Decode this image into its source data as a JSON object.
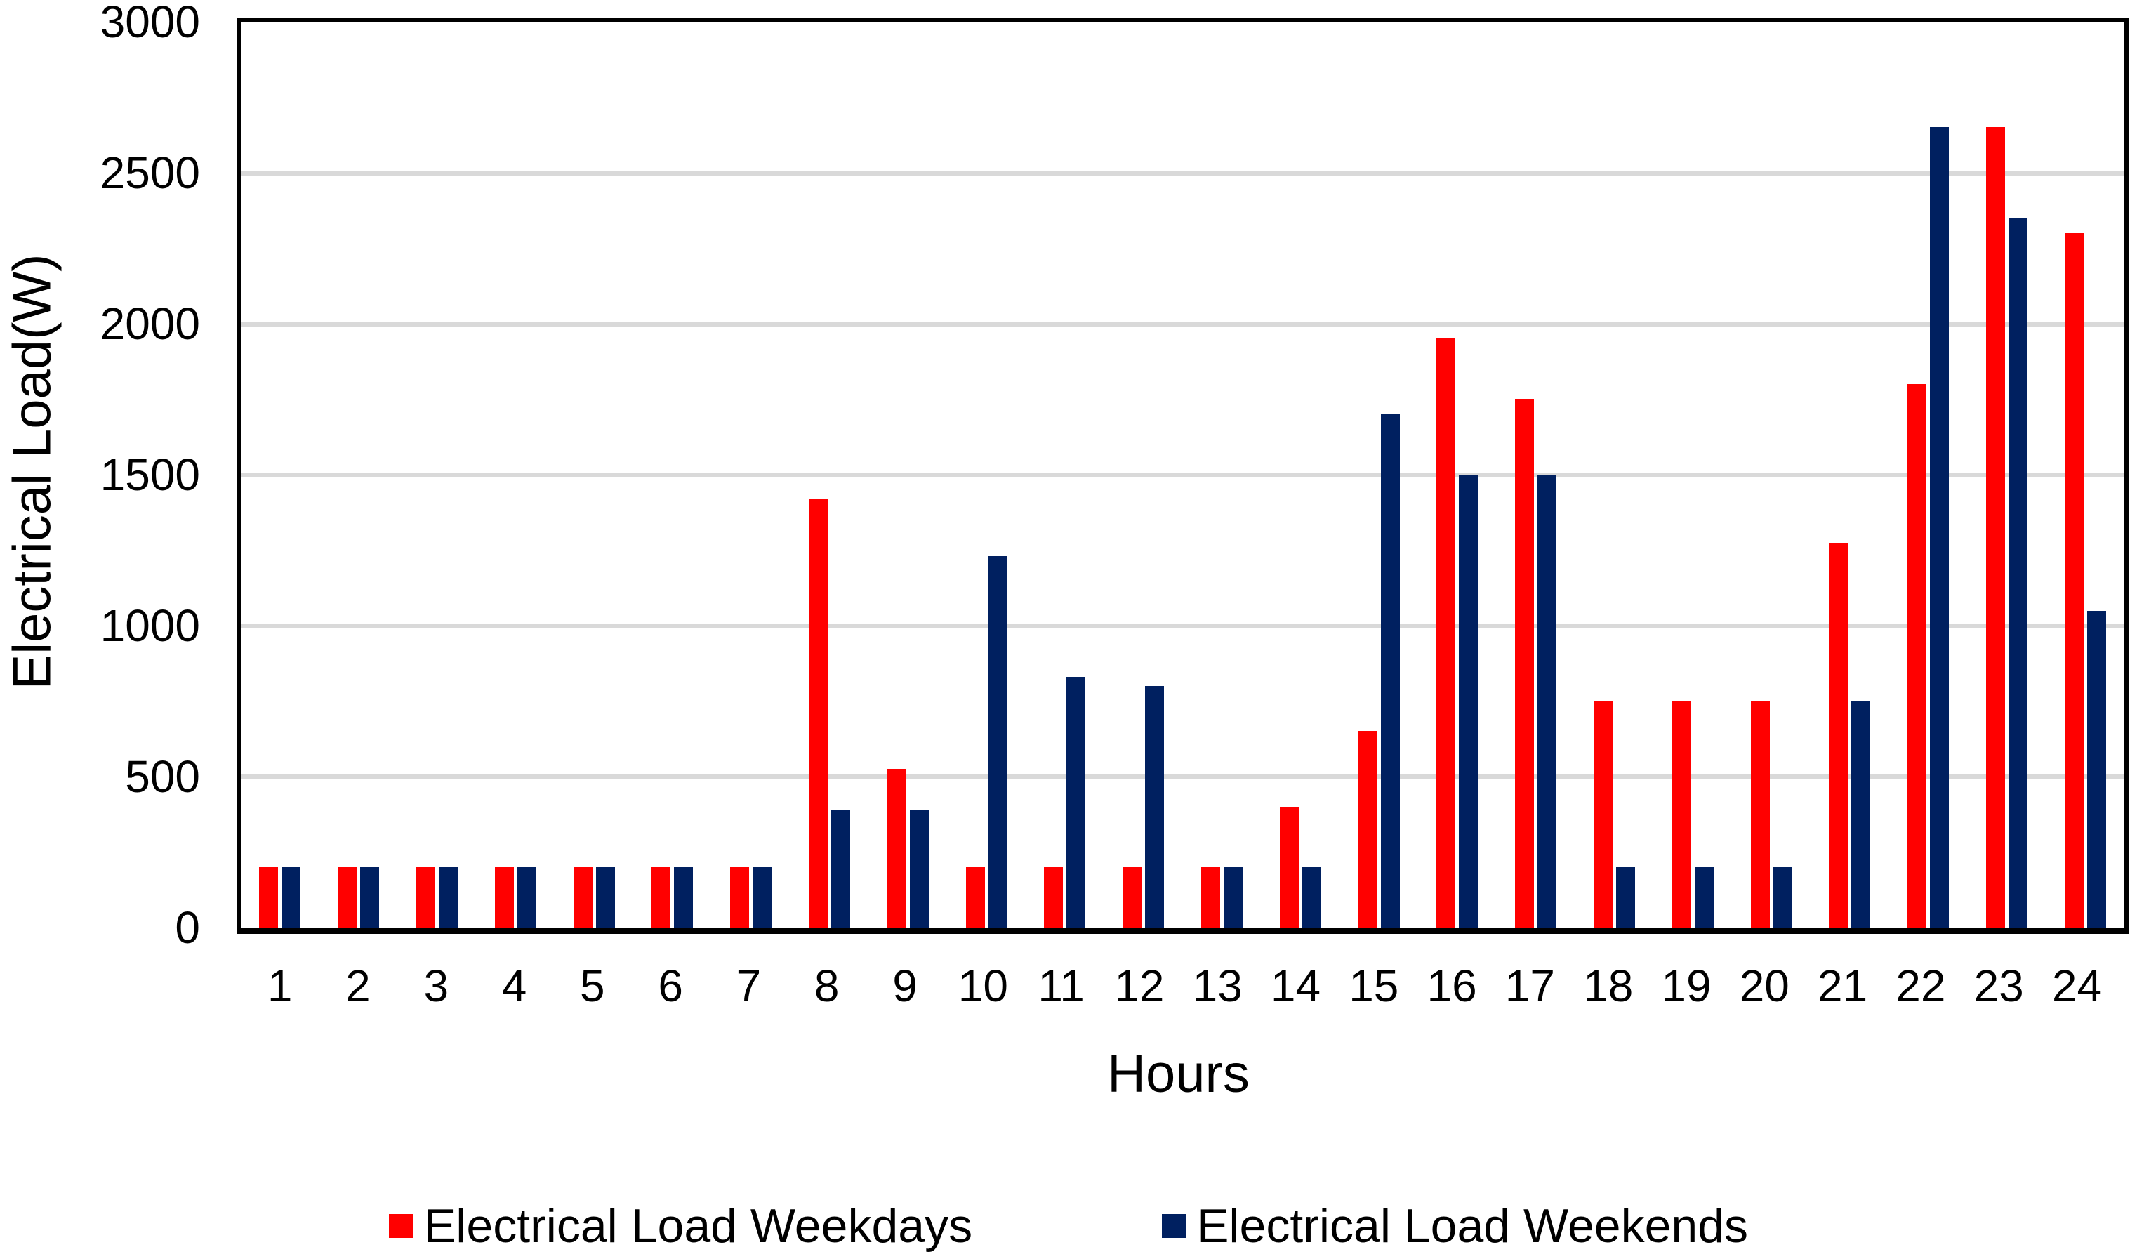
{
  "colors": {
    "weekdays": "#FF0000",
    "weekends": "#002060",
    "gridline": "#D9D9D9",
    "axis": "#000000",
    "background": "#FFFFFF",
    "text": "#000000"
  },
  "chart_data": {
    "type": "bar",
    "title": "",
    "xlabel": "Hours",
    "ylabel": "Electrical Load(W)",
    "ylim": [
      0,
      3000
    ],
    "yticks": [
      0,
      500,
      1000,
      1500,
      2000,
      2500,
      3000
    ],
    "grid": "horizontal",
    "legend_position": "bottom",
    "categories": [
      1,
      2,
      3,
      4,
      5,
      6,
      7,
      8,
      9,
      10,
      11,
      12,
      13,
      14,
      15,
      16,
      17,
      18,
      19,
      20,
      21,
      22,
      23,
      24
    ],
    "series": [
      {
        "name": "Electrical Load Weekdays",
        "color": "#FF0000",
        "values": [
          200,
          200,
          200,
          200,
          200,
          200,
          200,
          1420,
          525,
          200,
          200,
          200,
          200,
          400,
          650,
          1950,
          1750,
          750,
          750,
          750,
          1275,
          1800,
          2650,
          2300
        ]
      },
      {
        "name": "Electrical Load Weekends",
        "color": "#002060",
        "values": [
          200,
          200,
          200,
          200,
          200,
          200,
          200,
          390,
          390,
          1230,
          830,
          800,
          200,
          200,
          1700,
          1500,
          1500,
          200,
          200,
          200,
          750,
          2650,
          2350,
          1050
        ]
      }
    ]
  }
}
